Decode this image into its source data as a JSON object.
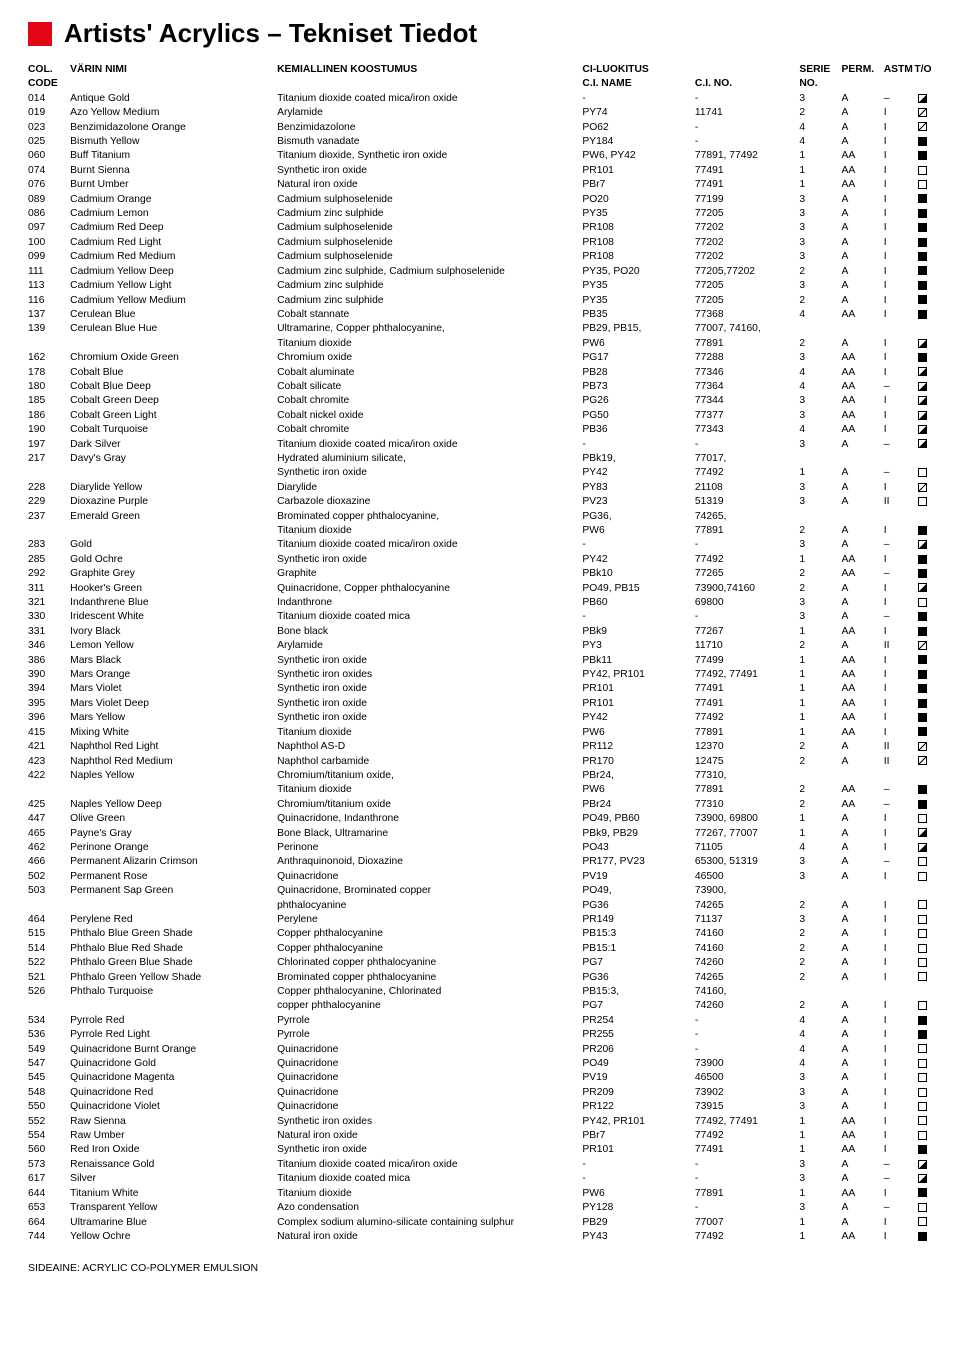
{
  "title": "Artists' Acrylics – Tekniset Tiedot",
  "header": {
    "code_top": "COL.",
    "code_bot": "CODE",
    "name": "VÄRIN NIMI",
    "comp": "KEMIALLINEN KOOSTUMUS",
    "ciname_top": "CI-LUOKITUS",
    "ciname_bot": "C.I. NAME",
    "cino": "C.I. NO.",
    "serie_top": "SERIE",
    "serie_bot": "NO.",
    "perm": "PERM.",
    "astm": "ASTM",
    "to": "T/O"
  },
  "footer": "SIDEAINE: ACRYLIC CO-POLYMER EMULSION",
  "rows": [
    {
      "code": "014",
      "name": "Antique Gold",
      "comp": "Titanium dioxide coated mica/iron oxide",
      "ciname": "-",
      "cino": "-",
      "serie": "3",
      "perm": "A",
      "astm": "–",
      "to": "half"
    },
    {
      "code": "019",
      "name": "Azo Yellow Medium",
      "comp": "Arylamide",
      "ciname": "PY74",
      "cino": "11741",
      "serie": "2",
      "perm": "A",
      "astm": "I",
      "to": "diag"
    },
    {
      "code": "023",
      "name": "Benzimidazolone Orange",
      "comp": "Benzimidazolone",
      "ciname": "PO62",
      "cino": "-",
      "serie": "4",
      "perm": "A",
      "astm": "I",
      "to": "diag"
    },
    {
      "code": "025",
      "name": "Bismuth Yellow",
      "comp": "Bismuth vanadate",
      "ciname": "PY184",
      "cino": "-",
      "serie": "4",
      "perm": "A",
      "astm": "I",
      "to": "full"
    },
    {
      "code": "060",
      "name": "Buff Titanium",
      "comp": "Titanium dioxide, Synthetic iron oxide",
      "ciname": "PW6, PY42",
      "cino": "77891, 77492",
      "serie": "1",
      "perm": "AA",
      "astm": "I",
      "to": "full"
    },
    {
      "code": "074",
      "name": "Burnt Sienna",
      "comp": "Synthetic iron oxide",
      "ciname": "PR101",
      "cino": "77491",
      "serie": "1",
      "perm": "AA",
      "astm": "I",
      "to": "empty"
    },
    {
      "code": "076",
      "name": "Burnt Umber",
      "comp": "Natural iron oxide",
      "ciname": "PBr7",
      "cino": "77491",
      "serie": "1",
      "perm": "AA",
      "astm": "I",
      "to": "empty"
    },
    {
      "code": "089",
      "name": "Cadmium Orange",
      "comp": "Cadmium sulphoselenide",
      "ciname": "PO20",
      "cino": "77199",
      "serie": "3",
      "perm": "A",
      "astm": "I",
      "to": "full"
    },
    {
      "code": "086",
      "name": "Cadmium Lemon",
      "comp": "Cadmium zinc sulphide",
      "ciname": "PY35",
      "cino": "77205",
      "serie": "3",
      "perm": "A",
      "astm": "I",
      "to": "full"
    },
    {
      "code": "097",
      "name": "Cadmium Red Deep",
      "comp": "Cadmium sulphoselenide",
      "ciname": "PR108",
      "cino": "77202",
      "serie": "3",
      "perm": "A",
      "astm": "I",
      "to": "full"
    },
    {
      "code": "100",
      "name": "Cadmium Red Light",
      "comp": "Cadmium sulphoselenide",
      "ciname": "PR108",
      "cino": "77202",
      "serie": "3",
      "perm": "A",
      "astm": "I",
      "to": "full"
    },
    {
      "code": "099",
      "name": "Cadmium Red Medium",
      "comp": "Cadmium sulphoselenide",
      "ciname": "PR108",
      "cino": "77202",
      "serie": "3",
      "perm": "A",
      "astm": "I",
      "to": "full"
    },
    {
      "code": "111",
      "name": "Cadmium Yellow Deep",
      "comp": "Cadmium zinc sulphide, Cadmium sulphoselenide",
      "ciname": "PY35, PO20",
      "cino": "77205,77202",
      "serie": "2",
      "perm": "A",
      "astm": "I",
      "to": "full"
    },
    {
      "code": "113",
      "name": "Cadmium Yellow Light",
      "comp": "Cadmium zinc sulphide",
      "ciname": "PY35",
      "cino": "77205",
      "serie": "3",
      "perm": "A",
      "astm": "I",
      "to": "full"
    },
    {
      "code": "116",
      "name": "Cadmium Yellow Medium",
      "comp": "Cadmium zinc sulphide",
      "ciname": "PY35",
      "cino": "77205",
      "serie": "2",
      "perm": "A",
      "astm": "I",
      "to": "full"
    },
    {
      "code": "137",
      "name": "Cerulean Blue",
      "comp": "Cobalt stannate",
      "ciname": "PB35",
      "cino": "77368",
      "serie": "4",
      "perm": "AA",
      "astm": "I",
      "to": "full"
    },
    {
      "code": "139",
      "name": "Cerulean Blue Hue",
      "comp": "Ultramarine, Copper phthalocyanine,",
      "ciname": "PB29, PB15,",
      "cino": "77007, 74160,",
      "serie": "",
      "perm": "",
      "astm": "",
      "to": ""
    },
    {
      "code": "",
      "name": "",
      "comp": "Titanium dioxide",
      "ciname": "PW6",
      "cino": "77891",
      "serie": "2",
      "perm": "A",
      "astm": "I",
      "to": "half"
    },
    {
      "code": "162",
      "name": "Chromium Oxide Green",
      "comp": "Chromium oxide",
      "ciname": "PG17",
      "cino": "77288",
      "serie": "3",
      "perm": "AA",
      "astm": "I",
      "to": "full"
    },
    {
      "code": "178",
      "name": "Cobalt Blue",
      "comp": "Cobalt aluminate",
      "ciname": "PB28",
      "cino": "77346",
      "serie": "4",
      "perm": "AA",
      "astm": "I",
      "to": "half"
    },
    {
      "code": "180",
      "name": "Cobalt Blue Deep",
      "comp": "Cobalt silicate",
      "ciname": "PB73",
      "cino": "77364",
      "serie": "4",
      "perm": "AA",
      "astm": "–",
      "to": "half"
    },
    {
      "code": "185",
      "name": "Cobalt Green Deep",
      "comp": "Cobalt chromite",
      "ciname": "PG26",
      "cino": "77344",
      "serie": "3",
      "perm": "AA",
      "astm": "I",
      "to": "half"
    },
    {
      "code": "186",
      "name": "Cobalt Green Light",
      "comp": "Cobalt nickel oxide",
      "ciname": "PG50",
      "cino": "77377",
      "serie": "3",
      "perm": "AA",
      "astm": "I",
      "to": "half"
    },
    {
      "code": "190",
      "name": "Cobalt Turquoise",
      "comp": "Cobalt chromite",
      "ciname": "PB36",
      "cino": "77343",
      "serie": "4",
      "perm": "AA",
      "astm": "I",
      "to": "half"
    },
    {
      "code": "197",
      "name": "Dark Silver",
      "comp": "Titanium dioxide coated mica/iron oxide",
      "ciname": "-",
      "cino": "-",
      "serie": "3",
      "perm": "A",
      "astm": "–",
      "to": "half"
    },
    {
      "code": "217",
      "name": "Davy's Gray",
      "comp": "Hydrated aluminium silicate,",
      "ciname": "PBk19,",
      "cino": "77017,",
      "serie": "",
      "perm": "",
      "astm": "",
      "to": ""
    },
    {
      "code": "",
      "name": "",
      "comp": "Synthetic iron oxide",
      "ciname": "PY42",
      "cino": "77492",
      "serie": "1",
      "perm": "A",
      "astm": "–",
      "to": "empty"
    },
    {
      "code": "228",
      "name": "Diarylide Yellow",
      "comp": "Diarylide",
      "ciname": "PY83",
      "cino": "21108",
      "serie": "3",
      "perm": "A",
      "astm": "I",
      "to": "diag"
    },
    {
      "code": "229",
      "name": "Dioxazine Purple",
      "comp": "Carbazole dioxazine",
      "ciname": "PV23",
      "cino": "51319",
      "serie": "3",
      "perm": "A",
      "astm": "II",
      "to": "empty"
    },
    {
      "code": "237",
      "name": "Emerald Green",
      "comp": "Brominated copper phthalocyanine,",
      "ciname": "PG36,",
      "cino": "74265,",
      "serie": "",
      "perm": "",
      "astm": "",
      "to": ""
    },
    {
      "code": "",
      "name": "",
      "comp": "Titanium dioxide",
      "ciname": "PW6",
      "cino": "77891",
      "serie": "2",
      "perm": "A",
      "astm": "I",
      "to": "full"
    },
    {
      "code": "283",
      "name": "Gold",
      "comp": "Titanium dioxide coated mica/iron oxide",
      "ciname": "-",
      "cino": "-",
      "serie": "3",
      "perm": "A",
      "astm": "–",
      "to": "half"
    },
    {
      "code": "285",
      "name": "Gold Ochre",
      "comp": "Synthetic iron oxide",
      "ciname": "PY42",
      "cino": "77492",
      "serie": "1",
      "perm": "AA",
      "astm": "I",
      "to": "full"
    },
    {
      "code": "292",
      "name": "Graphite Grey",
      "comp": "Graphite",
      "ciname": "PBk10",
      "cino": "77265",
      "serie": "2",
      "perm": "AA",
      "astm": "–",
      "to": "full"
    },
    {
      "code": "311",
      "name": "Hooker's Green",
      "comp": "Quinacridone, Copper phthalocyanine",
      "ciname": "PO49, PB15",
      "cino": "73900,74160",
      "serie": "2",
      "perm": "A",
      "astm": "I",
      "to": "half"
    },
    {
      "code": "321",
      "name": "Indanthrene Blue",
      "comp": "Indanthrone",
      "ciname": "PB60",
      "cino": "69800",
      "serie": "3",
      "perm": "A",
      "astm": "I",
      "to": "empty"
    },
    {
      "code": "330",
      "name": "Iridescent White",
      "comp": "Titanium dioxide coated mica",
      "ciname": "-",
      "cino": "-",
      "serie": "3",
      "perm": "A",
      "astm": "–",
      "to": "full"
    },
    {
      "code": "331",
      "name": "Ivory Black",
      "comp": "Bone black",
      "ciname": "PBk9",
      "cino": "77267",
      "serie": "1",
      "perm": "AA",
      "astm": "I",
      "to": "full"
    },
    {
      "code": "346",
      "name": "Lemon Yellow",
      "comp": "Arylamide",
      "ciname": "PY3",
      "cino": "11710",
      "serie": "2",
      "perm": "A",
      "astm": "II",
      "to": "diag"
    },
    {
      "code": "386",
      "name": "Mars Black",
      "comp": "Synthetic iron oxide",
      "ciname": "PBk11",
      "cino": "77499",
      "serie": "1",
      "perm": "AA",
      "astm": "I",
      "to": "full"
    },
    {
      "code": "390",
      "name": "Mars Orange",
      "comp": "Synthetic iron oxides",
      "ciname": "PY42, PR101",
      "cino": "77492, 77491",
      "serie": "1",
      "perm": "AA",
      "astm": "I",
      "to": "full"
    },
    {
      "code": "394",
      "name": "Mars Violet",
      "comp": "Synthetic iron oxide",
      "ciname": "PR101",
      "cino": "77491",
      "serie": "1",
      "perm": "AA",
      "astm": "I",
      "to": "full"
    },
    {
      "code": "395",
      "name": "Mars Violet Deep",
      "comp": "Synthetic iron oxide",
      "ciname": "PR101",
      "cino": "77491",
      "serie": "1",
      "perm": "AA",
      "astm": "I",
      "to": "full"
    },
    {
      "code": "396",
      "name": "Mars Yellow",
      "comp": "Synthetic iron oxide",
      "ciname": "PY42",
      "cino": "77492",
      "serie": "1",
      "perm": "AA",
      "astm": "I",
      "to": "full"
    },
    {
      "code": "415",
      "name": "Mixing White",
      "comp": "Titanium dioxide",
      "ciname": "PW6",
      "cino": "77891",
      "serie": "1",
      "perm": "AA",
      "astm": "I",
      "to": "full"
    },
    {
      "code": "421",
      "name": "Naphthol Red Light",
      "comp": "Naphthol AS-D",
      "ciname": "PR112",
      "cino": "12370",
      "serie": "2",
      "perm": "A",
      "astm": "II",
      "to": "diag"
    },
    {
      "code": "423",
      "name": "Naphthol Red Medium",
      "comp": "Naphthol carbamide",
      "ciname": "PR170",
      "cino": "12475",
      "serie": "2",
      "perm": "A",
      "astm": "II",
      "to": "diag"
    },
    {
      "code": "422",
      "name": "Naples Yellow",
      "comp": "Chromium/titanium oxide,",
      "ciname": "PBr24,",
      "cino": "77310,",
      "serie": "",
      "perm": "",
      "astm": "",
      "to": ""
    },
    {
      "code": "",
      "name": "",
      "comp": "Titanium dioxide",
      "ciname": "PW6",
      "cino": "77891",
      "serie": "2",
      "perm": "AA",
      "astm": "–",
      "to": "full"
    },
    {
      "code": "425",
      "name": "Naples Yellow Deep",
      "comp": "Chromium/titanium oxide",
      "ciname": "PBr24",
      "cino": "77310",
      "serie": "2",
      "perm": "AA",
      "astm": "–",
      "to": "full"
    },
    {
      "code": "447",
      "name": "Olive Green",
      "comp": "Quinacridone, Indanthrone",
      "ciname": "PO49, PB60",
      "cino": "73900, 69800",
      "serie": "1",
      "perm": "A",
      "astm": "I",
      "to": "empty"
    },
    {
      "code": "465",
      "name": "Payne's Gray",
      "comp": "Bone Black, Ultramarine",
      "ciname": "PBk9, PB29",
      "cino": "77267, 77007",
      "serie": "1",
      "perm": "A",
      "astm": "I",
      "to": "half"
    },
    {
      "code": "462",
      "name": "Perinone Orange",
      "comp": "Perinone",
      "ciname": "PO43",
      "cino": "71105",
      "serie": "4",
      "perm": "A",
      "astm": "I",
      "to": "half"
    },
    {
      "code": "466",
      "name": "Permanent Alizarin Crimson",
      "comp": "Anthraquinonoid, Dioxazine",
      "ciname": "PR177, PV23",
      "cino": "65300, 51319",
      "serie": "3",
      "perm": "A",
      "astm": "–",
      "to": "empty"
    },
    {
      "code": "502",
      "name": "Permanent Rose",
      "comp": "Quinacridone",
      "ciname": "PV19",
      "cino": "46500",
      "serie": "3",
      "perm": "A",
      "astm": "I",
      "to": "empty"
    },
    {
      "code": "503",
      "name": "Permanent Sap Green",
      "comp": "Quinacridone, Brominated copper",
      "ciname": "PO49,",
      "cino": "73900,",
      "serie": "",
      "perm": "",
      "astm": "",
      "to": ""
    },
    {
      "code": "",
      "name": "",
      "comp": "phthalocyanine",
      "ciname": "PG36",
      "cino": "74265",
      "serie": "2",
      "perm": "A",
      "astm": "I",
      "to": "empty"
    },
    {
      "code": "464",
      "name": "Perylene Red",
      "comp": "Perylene",
      "ciname": "PR149",
      "cino": "71137",
      "serie": "3",
      "perm": "A",
      "astm": "I",
      "to": "empty"
    },
    {
      "code": "515",
      "name": "Phthalo Blue Green Shade",
      "comp": "Copper phthalocyanine",
      "ciname": "PB15:3",
      "cino": "74160",
      "serie": "2",
      "perm": "A",
      "astm": "I",
      "to": "empty"
    },
    {
      "code": "514",
      "name": "Phthalo Blue Red Shade",
      "comp": "Copper phthalocyanine",
      "ciname": "PB15:1",
      "cino": "74160",
      "serie": "2",
      "perm": "A",
      "astm": "I",
      "to": "empty"
    },
    {
      "code": "522",
      "name": "Phthalo Green Blue Shade",
      "comp": "Chlorinated copper phthalocyanine",
      "ciname": "PG7",
      "cino": "74260",
      "serie": "2",
      "perm": "A",
      "astm": "I",
      "to": "empty"
    },
    {
      "code": "521",
      "name": "Phthalo Green Yellow Shade",
      "comp": "Brominated copper phthalocyanine",
      "ciname": "PG36",
      "cino": "74265",
      "serie": "2",
      "perm": "A",
      "astm": "I",
      "to": "empty"
    },
    {
      "code": "526",
      "name": "Phthalo Turquoise",
      "comp": "Copper phthalocyanine, Chlorinated",
      "ciname": "PB15:3,",
      "cino": "74160,",
      "serie": "",
      "perm": "",
      "astm": "",
      "to": ""
    },
    {
      "code": "",
      "name": "",
      "comp": "copper phthalocyanine",
      "ciname": "PG7",
      "cino": "74260",
      "serie": "2",
      "perm": "A",
      "astm": "I",
      "to": "empty"
    },
    {
      "code": "534",
      "name": "Pyrrole Red",
      "comp": "Pyrrole",
      "ciname": "PR254",
      "cino": "-",
      "serie": "4",
      "perm": "A",
      "astm": "I",
      "to": "full"
    },
    {
      "code": "536",
      "name": "Pyrrole Red Light",
      "comp": "Pyrrole",
      "ciname": "PR255",
      "cino": "-",
      "serie": "4",
      "perm": "A",
      "astm": "I",
      "to": "full"
    },
    {
      "code": "549",
      "name": "Quinacridone Burnt Orange",
      "comp": "Quinacridone",
      "ciname": "PR206",
      "cino": "-",
      "serie": "4",
      "perm": "A",
      "astm": "I",
      "to": "empty"
    },
    {
      "code": "547",
      "name": "Quinacridone Gold",
      "comp": "Quinacridone",
      "ciname": "PO49",
      "cino": "73900",
      "serie": "4",
      "perm": "A",
      "astm": "I",
      "to": "empty"
    },
    {
      "code": "545",
      "name": "Quinacridone Magenta",
      "comp": "Quinacridone",
      "ciname": "PV19",
      "cino": "46500",
      "serie": "3",
      "perm": "A",
      "astm": "I",
      "to": "empty"
    },
    {
      "code": "548",
      "name": "Quinacridone Red",
      "comp": "Quinacridone",
      "ciname": "PR209",
      "cino": "73902",
      "serie": "3",
      "perm": "A",
      "astm": "I",
      "to": "empty"
    },
    {
      "code": "550",
      "name": "Quinacridone Violet",
      "comp": "Quinacridone",
      "ciname": "PR122",
      "cino": "73915",
      "serie": "3",
      "perm": "A",
      "astm": "I",
      "to": "empty"
    },
    {
      "code": "552",
      "name": "Raw Sienna",
      "comp": "Synthetic iron oxides",
      "ciname": "PY42, PR101",
      "cino": "77492, 77491",
      "serie": "1",
      "perm": "AA",
      "astm": "I",
      "to": "empty"
    },
    {
      "code": "554",
      "name": "Raw Umber",
      "comp": "Natural iron oxide",
      "ciname": "PBr7",
      "cino": "77492",
      "serie": "1",
      "perm": "AA",
      "astm": "I",
      "to": "empty"
    },
    {
      "code": "560",
      "name": "Red Iron Oxide",
      "comp": "Synthetic iron oxide",
      "ciname": "PR101",
      "cino": "77491",
      "serie": "1",
      "perm": "AA",
      "astm": "I",
      "to": "full"
    },
    {
      "code": "573",
      "name": "Renaissance Gold",
      "comp": "Titanium dioxide coated mica/iron oxide",
      "ciname": "-",
      "cino": "-",
      "serie": "3",
      "perm": "A",
      "astm": "–",
      "to": "half"
    },
    {
      "code": "617",
      "name": "Silver",
      "comp": "Titanium dioxide coated mica",
      "ciname": "-",
      "cino": "-",
      "serie": "3",
      "perm": "A",
      "astm": "–",
      "to": "half"
    },
    {
      "code": "644",
      "name": "Titanium White",
      "comp": "Titanium dioxide",
      "ciname": "PW6",
      "cino": "77891",
      "serie": "1",
      "perm": "AA",
      "astm": "I",
      "to": "full"
    },
    {
      "code": "653",
      "name": "Transparent Yellow",
      "comp": "Azo condensation",
      "ciname": "PY128",
      "cino": "-",
      "serie": "3",
      "perm": "A",
      "astm": "–",
      "to": "empty"
    },
    {
      "code": "664",
      "name": "Ultramarine Blue",
      "comp": "Complex sodium alumino-silicate containing sulphur",
      "ciname": "PB29",
      "cino": "77007",
      "serie": "1",
      "perm": "A",
      "astm": "I",
      "to": "empty"
    },
    {
      "code": "744",
      "name": "Yellow Ochre",
      "comp": "Natural iron oxide",
      "ciname": "PY43",
      "cino": "77492",
      "serie": "1",
      "perm": "AA",
      "astm": "I",
      "to": "full"
    }
  ]
}
